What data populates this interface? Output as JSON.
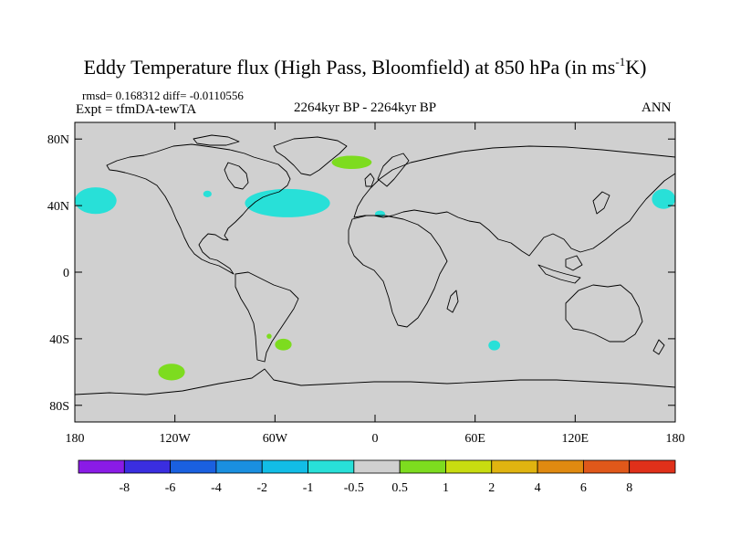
{
  "title": {
    "main": "Eddy Temperature flux (High Pass, Bloomfield) at 850 hPa (in ms",
    "sup": "-1",
    "tail": "K)"
  },
  "stats": {
    "rmsd_label": "rmsd=",
    "rmsd_value": "0.168312",
    "diff_label": "diff=",
    "diff_value": "-0.0110556"
  },
  "left_label": "Expt = tfmDA-tewTA",
  "center_label": "2264kyr BP - 2264kyr BP",
  "right_label": "ANN",
  "chart_data": {
    "type": "heatmap",
    "projection": "cylindrical equidistant world map",
    "x_ticks": [
      "180",
      "120W",
      "60W",
      "0",
      "60E",
      "120E",
      "180"
    ],
    "y_ticks": [
      "80N",
      "40N",
      "0",
      "40S",
      "80S"
    ],
    "x_tick_values": [
      -180,
      -120,
      -60,
      0,
      60,
      120,
      180
    ],
    "y_tick_values": [
      80,
      40,
      0,
      -40,
      -80
    ],
    "xlim": [
      -180,
      180
    ],
    "ylim": [
      -90,
      90
    ],
    "background_color": "#d0d0d0",
    "colorbar": {
      "labels": [
        "-8",
        "-6",
        "-4",
        "-2",
        "-1",
        "-0.5",
        "0.5",
        "1",
        "2",
        "4",
        "6",
        "8"
      ],
      "colors": [
        "#8a1be6",
        "#3a2ee0",
        "#1a60e0",
        "#1a8fe0",
        "#12bde6",
        "#28e0d8",
        "#d0d0d0",
        "#7ddc1f",
        "#c8dc10",
        "#e0b410",
        "#e08a10",
        "#e0581a",
        "#e0301a"
      ]
    },
    "anomaly_regions": [
      {
        "name": "north-pacific-east-cyan",
        "color": "#28e0d8",
        "lon": [
          -180,
          -155
        ],
        "lat": [
          35,
          51
        ]
      },
      {
        "name": "north-pacific-west-cyan",
        "color": "#28e0d8",
        "lon": [
          166,
          180
        ],
        "lat": [
          38,
          50
        ]
      },
      {
        "name": "north-america-small-cyan",
        "color": "#28e0d8",
        "lon": [
          -103,
          -98
        ],
        "lat": [
          45,
          49
        ]
      },
      {
        "name": "north-atlantic-cyan",
        "color": "#28e0d8",
        "lon": [
          -78,
          -27
        ],
        "lat": [
          33,
          50
        ]
      },
      {
        "name": "mediterranean-cyan",
        "color": "#28e0d8",
        "lon": [
          0,
          6
        ],
        "lat": [
          33,
          37
        ]
      },
      {
        "name": "greenland-green",
        "color": "#7ddc1f",
        "lon": [
          -26,
          -2
        ],
        "lat": [
          62,
          70
        ]
      },
      {
        "name": "south-pacific-green",
        "color": "#7ddc1f",
        "lon": [
          -130,
          -114
        ],
        "lat": [
          -65,
          -55
        ]
      },
      {
        "name": "south-atlantic-green",
        "color": "#7ddc1f",
        "lon": [
          -60,
          -50
        ],
        "lat": [
          -47,
          -40
        ]
      },
      {
        "name": "patagonia-green",
        "color": "#7ddc1f",
        "lon": [
          -65,
          -62
        ],
        "lat": [
          -40,
          -37
        ]
      },
      {
        "name": "south-indian-cyan",
        "color": "#28e0d8",
        "lon": [
          68,
          75
        ],
        "lat": [
          -47,
          -41
        ]
      }
    ]
  }
}
